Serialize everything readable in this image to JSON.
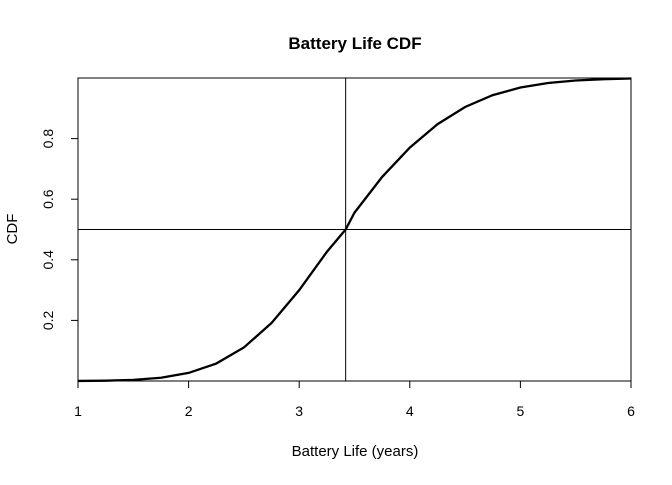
{
  "chart_data": {
    "type": "line",
    "title": "Battery Life CDF",
    "xlabel": "Battery Life (years)",
    "ylabel": "CDF",
    "xlim": [
      1,
      6
    ],
    "ylim": [
      0,
      1
    ],
    "xticks": [
      1,
      2,
      3,
      4,
      5,
      6
    ],
    "yticks": [
      0.2,
      0.4,
      0.6,
      0.8
    ],
    "xtick_labels": [
      "1",
      "2",
      "3",
      "4",
      "5",
      "6"
    ],
    "ytick_labels": [
      "0.2",
      "0.4",
      "0.6",
      "0.8"
    ],
    "grid": false,
    "reference_lines": {
      "vertical_x": 3.42,
      "horizontal_y": 0.5
    },
    "series": [
      {
        "x": [
          1.0,
          1.25,
          1.5,
          1.75,
          2.0,
          2.25,
          2.5,
          2.75,
          3.0,
          3.25,
          3.42,
          3.5,
          3.75,
          4.0,
          4.25,
          4.5,
          4.75,
          5.0,
          5.25,
          5.5,
          5.75,
          6.0
        ],
        "y": [
          0.0002,
          0.0011,
          0.0038,
          0.0108,
          0.0267,
          0.0576,
          0.1106,
          0.1916,
          0.2998,
          0.4262,
          0.5,
          0.5557,
          0.6736,
          0.7702,
          0.8474,
          0.9044,
          0.9436,
          0.9686,
          0.9835,
          0.9917,
          0.9961,
          0.9983
        ],
        "color": "#000000"
      }
    ]
  }
}
